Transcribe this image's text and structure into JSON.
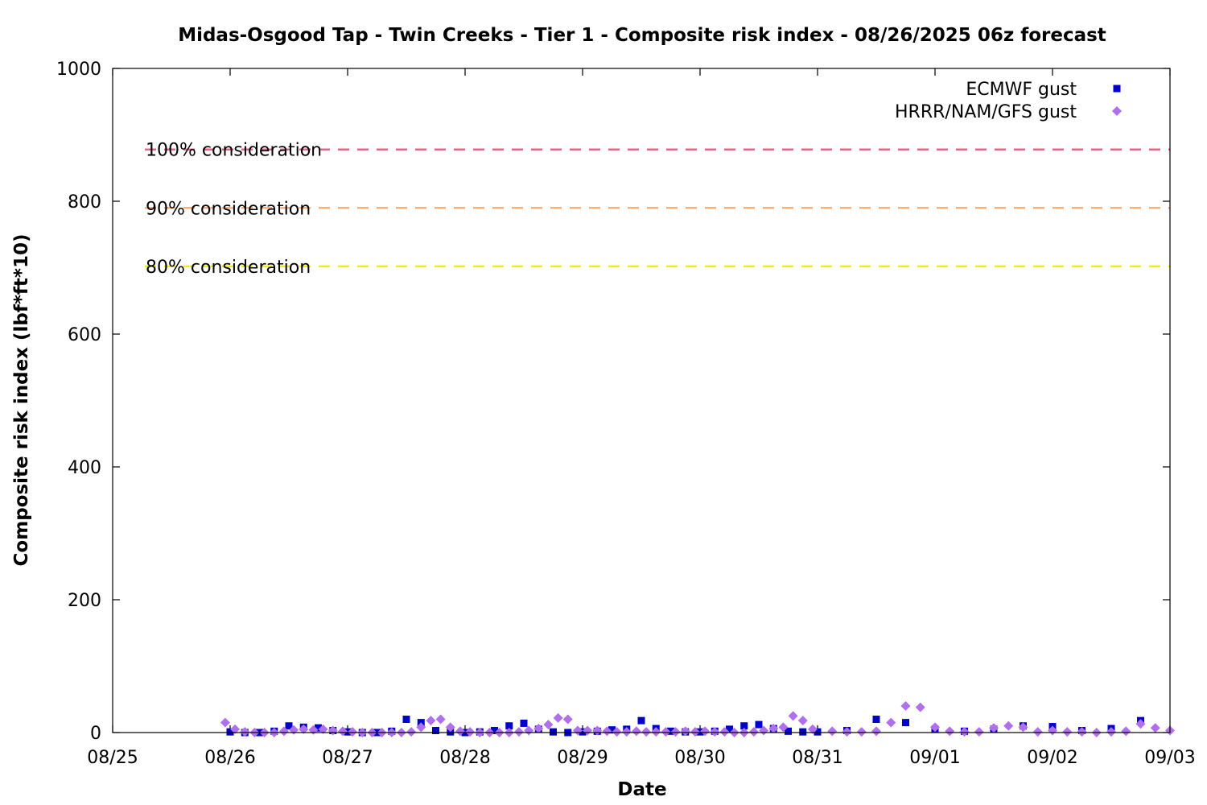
{
  "chart_data": {
    "type": "scatter",
    "title": "Midas-Osgood Tap - Twin Creeks - Tier 1 - Composite risk index - 08/26/2025 06z forecast",
    "xlabel": "Date",
    "ylabel": "Composite risk index (lbf*ft*10)",
    "xlim": [
      "2025-08-25",
      "2025-09-03"
    ],
    "ylim": [
      0,
      1000
    ],
    "x_ticks": [
      "08/25",
      "08/26",
      "08/27",
      "08/28",
      "08/29",
      "08/30",
      "08/31",
      "09/01",
      "09/02",
      "09/03"
    ],
    "y_ticks": [
      "0",
      "200",
      "400",
      "600",
      "800",
      "1000"
    ],
    "grid": false,
    "legend_position": "top-right",
    "reference_lines": [
      {
        "label": "100% consideration",
        "value": 878,
        "color": "#e06080"
      },
      {
        "label": "90% consideration",
        "value": 790,
        "color": "#f8b078"
      },
      {
        "label": "80% consideration",
        "value": 702,
        "color": "#f0f000"
      }
    ],
    "series": [
      {
        "name": "ECMWF gust",
        "color": "#0000cc",
        "marker": "square",
        "x": [
          "2025-08-26 00:00",
          "2025-08-26 03:00",
          "2025-08-26 06:00",
          "2025-08-26 09:00",
          "2025-08-26 12:00",
          "2025-08-26 15:00",
          "2025-08-26 18:00",
          "2025-08-26 21:00",
          "2025-08-27 00:00",
          "2025-08-27 03:00",
          "2025-08-27 06:00",
          "2025-08-27 09:00",
          "2025-08-27 12:00",
          "2025-08-27 15:00",
          "2025-08-27 18:00",
          "2025-08-27 21:00",
          "2025-08-28 00:00",
          "2025-08-28 03:00",
          "2025-08-28 06:00",
          "2025-08-28 09:00",
          "2025-08-28 12:00",
          "2025-08-28 15:00",
          "2025-08-28 18:00",
          "2025-08-28 21:00",
          "2025-08-29 00:00",
          "2025-08-29 03:00",
          "2025-08-29 06:00",
          "2025-08-29 09:00",
          "2025-08-29 12:00",
          "2025-08-29 15:00",
          "2025-08-29 18:00",
          "2025-08-29 21:00",
          "2025-08-30 00:00",
          "2025-08-30 03:00",
          "2025-08-30 06:00",
          "2025-08-30 09:00",
          "2025-08-30 12:00",
          "2025-08-30 15:00",
          "2025-08-30 18:00",
          "2025-08-30 21:00",
          "2025-08-31 00:00",
          "2025-08-31 06:00",
          "2025-08-31 12:00",
          "2025-08-31 18:00",
          "2025-09-01 00:00",
          "2025-09-01 06:00",
          "2025-09-01 12:00",
          "2025-09-01 18:00",
          "2025-09-02 00:00",
          "2025-09-02 06:00",
          "2025-09-02 12:00",
          "2025-09-02 18:00"
        ],
        "y": [
          1,
          0,
          0,
          2,
          10,
          8,
          7,
          3,
          1,
          0,
          0,
          2,
          20,
          15,
          3,
          1,
          0,
          1,
          3,
          10,
          14,
          5,
          1,
          0,
          1,
          2,
          4,
          5,
          18,
          6,
          2,
          1,
          1,
          2,
          5,
          10,
          12,
          6,
          2,
          1,
          1,
          3,
          20,
          15,
          5,
          2,
          5,
          10,
          9,
          3,
          6,
          18
        ]
      },
      {
        "name": "HRRR/NAM/GFS gust",
        "color": "#b070ee",
        "marker": "diamond",
        "x": [
          "2025-08-25 23:00",
          "2025-08-26 01:00",
          "2025-08-26 03:00",
          "2025-08-26 05:00",
          "2025-08-26 07:00",
          "2025-08-26 09:00",
          "2025-08-26 11:00",
          "2025-08-26 13:00",
          "2025-08-26 15:00",
          "2025-08-26 17:00",
          "2025-08-26 19:00",
          "2025-08-26 21:00",
          "2025-08-26 23:00",
          "2025-08-27 01:00",
          "2025-08-27 03:00",
          "2025-08-27 05:00",
          "2025-08-27 07:00",
          "2025-08-27 09:00",
          "2025-08-27 11:00",
          "2025-08-27 13:00",
          "2025-08-27 15:00",
          "2025-08-27 17:00",
          "2025-08-27 19:00",
          "2025-08-27 21:00",
          "2025-08-27 23:00",
          "2025-08-28 01:00",
          "2025-08-28 03:00",
          "2025-08-28 05:00",
          "2025-08-28 07:00",
          "2025-08-28 09:00",
          "2025-08-28 11:00",
          "2025-08-28 13:00",
          "2025-08-28 15:00",
          "2025-08-28 17:00",
          "2025-08-28 19:00",
          "2025-08-28 21:00",
          "2025-08-28 23:00",
          "2025-08-29 01:00",
          "2025-08-29 03:00",
          "2025-08-29 05:00",
          "2025-08-29 07:00",
          "2025-08-29 09:00",
          "2025-08-29 11:00",
          "2025-08-29 13:00",
          "2025-08-29 15:00",
          "2025-08-29 17:00",
          "2025-08-29 19:00",
          "2025-08-29 21:00",
          "2025-08-29 23:00",
          "2025-08-30 01:00",
          "2025-08-30 03:00",
          "2025-08-30 05:00",
          "2025-08-30 07:00",
          "2025-08-30 09:00",
          "2025-08-30 11:00",
          "2025-08-30 13:00",
          "2025-08-30 15:00",
          "2025-08-30 17:00",
          "2025-08-30 19:00",
          "2025-08-30 21:00",
          "2025-08-30 23:00",
          "2025-08-31 03:00",
          "2025-08-31 06:00",
          "2025-08-31 09:00",
          "2025-08-31 12:00",
          "2025-08-31 15:00",
          "2025-08-31 18:00",
          "2025-08-31 21:00",
          "2025-09-01 00:00",
          "2025-09-01 03:00",
          "2025-09-01 06:00",
          "2025-09-01 09:00",
          "2025-09-01 12:00",
          "2025-09-01 15:00",
          "2025-09-01 18:00",
          "2025-09-01 21:00",
          "2025-09-02 00:00",
          "2025-09-02 03:00",
          "2025-09-02 06:00",
          "2025-09-02 09:00",
          "2025-09-02 12:00",
          "2025-09-02 15:00",
          "2025-09-02 18:00",
          "2025-09-02 21:00",
          "2025-09-03 00:00"
        ],
        "y": [
          15,
          5,
          1,
          0,
          0,
          0,
          2,
          4,
          5,
          4,
          5,
          3,
          2,
          1,
          0,
          0,
          0,
          0,
          0,
          1,
          8,
          18,
          20,
          8,
          2,
          1,
          0,
          0,
          0,
          0,
          1,
          3,
          6,
          12,
          22,
          20,
          3,
          3,
          3,
          2,
          1,
          1,
          2,
          1,
          1,
          1,
          1,
          2,
          1,
          2,
          1,
          1,
          0,
          0,
          1,
          3,
          6,
          8,
          25,
          18,
          5,
          2,
          1,
          1,
          2,
          15,
          40,
          38,
          8,
          2,
          1,
          1,
          7,
          10,
          8,
          1,
          3,
          1,
          1,
          0,
          1,
          2,
          13,
          7,
          3
        ]
      }
    ]
  }
}
